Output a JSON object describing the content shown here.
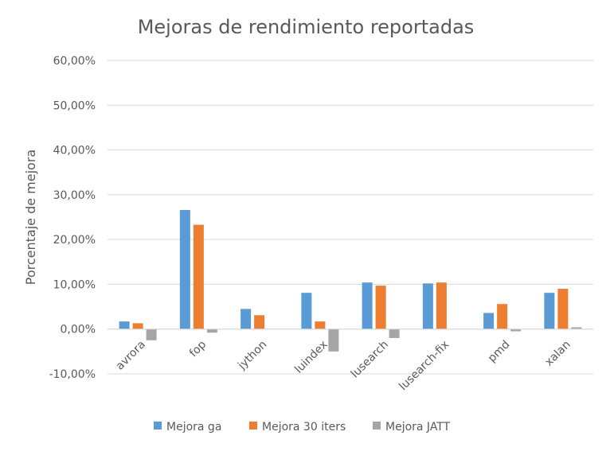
{
  "chart_data": {
    "type": "bar",
    "title": "Mejoras de rendimiento reportadas",
    "xlabel": "",
    "ylabel": "Porcentaje de mejora",
    "categories": [
      "avrora",
      "fop",
      "jython",
      "luindex",
      "lusearch",
      "lusearch-fix",
      "pmd",
      "xalan"
    ],
    "series": [
      {
        "name": "Mejora ga",
        "color": "#5B9BD5",
        "values": [
          1.7,
          26.6,
          4.5,
          8.1,
          10.4,
          10.2,
          3.6,
          8.1
        ]
      },
      {
        "name": "Mejora 30 iters",
        "color": "#ED7D31",
        "values": [
          1.3,
          23.3,
          3.1,
          1.7,
          9.7,
          10.4,
          5.6,
          9.0
        ]
      },
      {
        "name": "Mejora JATT",
        "color": "#A5A5A5",
        "values": [
          -2.5,
          -0.8,
          0.0,
          -5.0,
          -2.0,
          0.0,
          -0.5,
          0.4
        ]
      }
    ],
    "y_ticks": [
      "-10,00%",
      "0,00%",
      "10,00%",
      "20,00%",
      "30,00%",
      "40,00%",
      "50,00%",
      "60,00%"
    ],
    "ylim": [
      -10,
      60
    ],
    "grid": true,
    "legend_position": "bottom"
  }
}
